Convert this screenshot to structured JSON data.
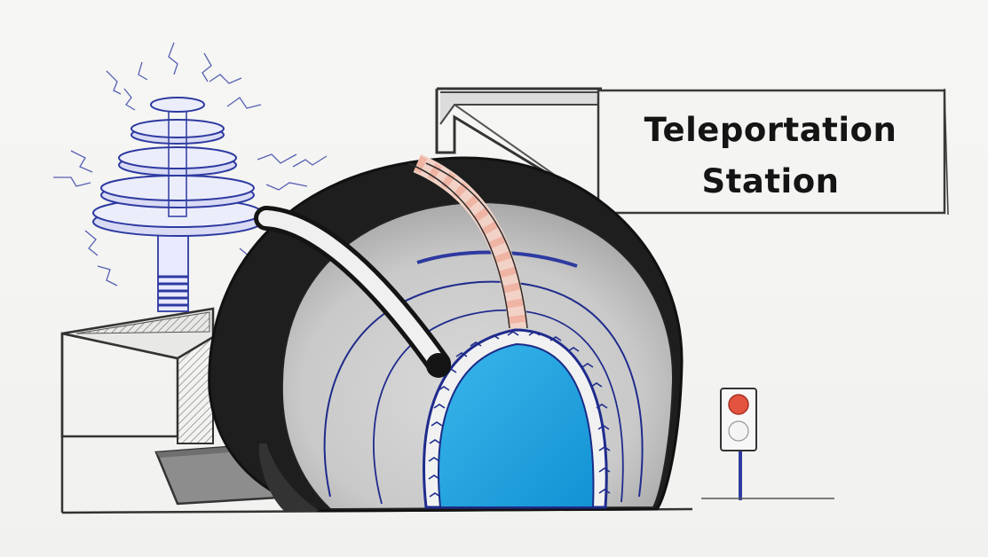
{
  "sign": {
    "line1": "Teleportation",
    "line2": "Station"
  },
  "colors": {
    "paper": "#f3f3f1",
    "ink": "#151515",
    "shell_dark": "#1f1f1f",
    "shell_grey": "#cfcfcf",
    "portal_blue": "#1ea3df",
    "arc_blue": "#2d3aa0",
    "light_red": "#e3533f"
  },
  "icons": {
    "coil": "tesla-coil-icon",
    "signal": "traffic-light-icon",
    "portal": "portal-ring-icon"
  }
}
